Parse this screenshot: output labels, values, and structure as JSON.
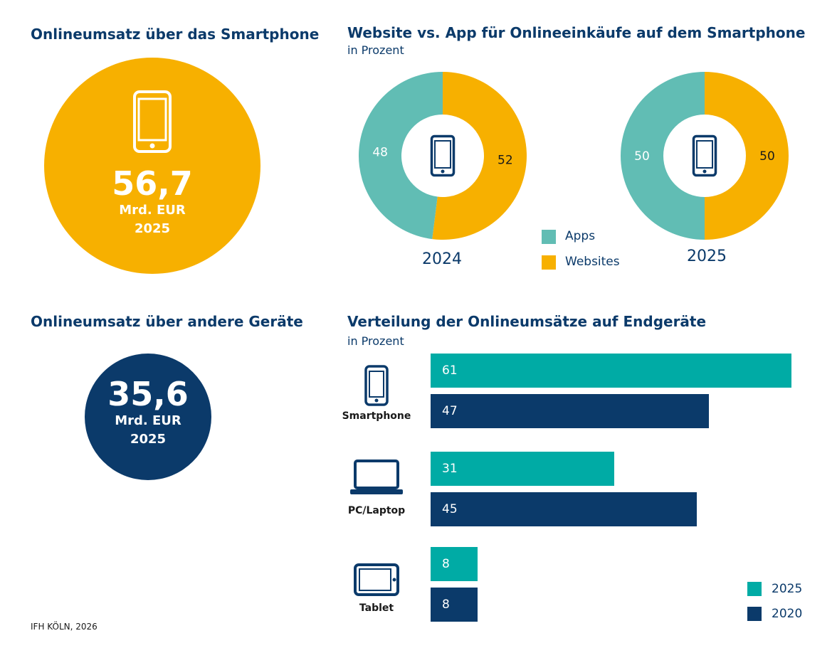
{
  "colors": {
    "navy": "#0b3a6a",
    "orange": "#f7b000",
    "teal_light": "#61bdb4",
    "teal": "#00aba5"
  },
  "smartphone_total": {
    "title": "Onlineumsatz über das Smartphone",
    "value": "56,7",
    "unit": "Mrd. EUR",
    "year": "2025",
    "icon": "smartphone-icon"
  },
  "other_devices_total": {
    "title": "Onlineumsatz über andere Geräte",
    "value": "35,6",
    "unit": "Mrd. EUR",
    "year": "2025"
  },
  "donut_section": {
    "title": "Website vs. App für Onlineeinkäufe auf dem Smartphone",
    "subtitle": "in Prozent",
    "legend": [
      {
        "label": "Apps",
        "color": "#61bdb4"
      },
      {
        "label": "Websites",
        "color": "#f7b000"
      }
    ]
  },
  "bar_section": {
    "title": "Verteilung der Onlineumsätze auf Endgeräte",
    "subtitle": "in Prozent",
    "devices": [
      {
        "label": "Smartphone",
        "icon": "smartphone-icon"
      },
      {
        "label": "PC/Laptop",
        "icon": "laptop-icon"
      },
      {
        "label": "Tablet",
        "icon": "tablet-icon"
      }
    ],
    "legend": [
      {
        "label": "2025",
        "color": "#00aba5"
      },
      {
        "label": "2020",
        "color": "#0b3a6a"
      }
    ]
  },
  "footer": {
    "source": "IFH KÖLN, 2026"
  },
  "chart_data": [
    {
      "type": "pie",
      "title": "2024",
      "categories": [
        "Apps",
        "Websites"
      ],
      "values": [
        48,
        52
      ]
    },
    {
      "type": "pie",
      "title": "2025",
      "categories": [
        "Apps",
        "Websites"
      ],
      "values": [
        50,
        50
      ]
    },
    {
      "type": "bar",
      "title": "Verteilung der Onlineumsätze auf Endgeräte",
      "categories": [
        "Smartphone",
        "PC/Laptop",
        "Tablet"
      ],
      "series": [
        {
          "name": "2025",
          "values": [
            61,
            31,
            8
          ]
        },
        {
          "name": "2020",
          "values": [
            47,
            45,
            8
          ]
        }
      ],
      "xlim": [
        0,
        61
      ]
    }
  ]
}
